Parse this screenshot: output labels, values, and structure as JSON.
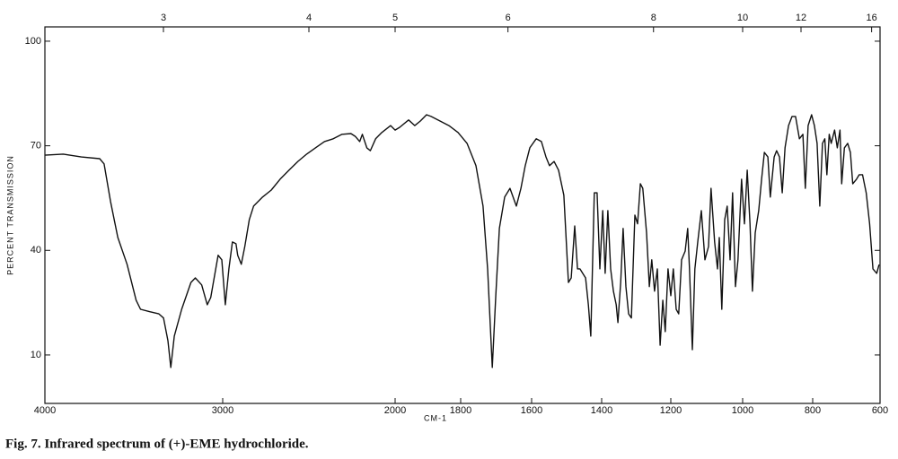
{
  "chart_data": {
    "type": "line",
    "caption": "Fig. 7. Infrared spectrum of (+)-EME hydrochloride.",
    "xlabel": "CM-1",
    "ylabel": "PERCENT TRANSMISSION",
    "xlim": [
      4000,
      600
    ],
    "ylim": [
      -3.9,
      104.1
    ],
    "xticks": [
      4000,
      3000,
      2000,
      1800,
      1600,
      1400,
      1200,
      1000,
      800,
      600
    ],
    "x2ticks": [
      3,
      4,
      5,
      6,
      8,
      10,
      12,
      16
    ],
    "yticks": [
      10,
      40,
      70,
      100
    ],
    "color": "#111111",
    "x": [
      4000,
      3897,
      3795,
      3692,
      3667,
      3631,
      3590,
      3538,
      3487,
      3462,
      3410,
      3359,
      3333,
      3308,
      3292,
      3272,
      3231,
      3179,
      3154,
      3118,
      3087,
      3067,
      3026,
      3005,
      2985,
      2964,
      2944,
      2923,
      2913,
      2892,
      2872,
      2846,
      2821,
      2769,
      2718,
      2667,
      2615,
      2564,
      2513,
      2462,
      2410,
      2359,
      2308,
      2256,
      2231,
      2205,
      2190,
      2164,
      2144,
      2113,
      2077,
      2026,
      2000,
      1986,
      1959,
      1940,
      1923,
      1904,
      1890,
      1863,
      1836,
      1808,
      1782,
      1757,
      1737,
      1724,
      1711,
      1701,
      1691,
      1676,
      1661,
      1643,
      1630,
      1618,
      1605,
      1587,
      1572,
      1559,
      1549,
      1536,
      1523,
      1508,
      1495,
      1487,
      1477,
      1469,
      1462,
      1454,
      1446,
      1438,
      1431,
      1421,
      1413,
      1405,
      1397,
      1390,
      1382,
      1374,
      1366,
      1358,
      1353,
      1345,
      1338,
      1330,
      1322,
      1314,
      1304,
      1296,
      1288,
      1281,
      1270,
      1262,
      1255,
      1247,
      1239,
      1231,
      1223,
      1216,
      1208,
      1200,
      1193,
      1185,
      1178,
      1170,
      1160,
      1153,
      1148,
      1140,
      1133,
      1125,
      1115,
      1105,
      1095,
      1088,
      1078,
      1070,
      1065,
      1058,
      1050,
      1043,
      1035,
      1028,
      1020,
      1013,
      1003,
      995,
      987,
      979,
      972,
      964,
      954,
      946,
      938,
      928,
      921,
      910,
      903,
      895,
      887,
      879,
      869,
      859,
      849,
      838,
      828,
      821,
      813,
      803,
      795,
      787,
      779,
      771,
      764,
      758,
      751,
      745,
      735,
      727,
      719,
      714,
      706,
      696,
      688,
      681,
      670,
      662,
      652,
      641,
      631,
      621,
      610,
      603
    ],
    "values": [
      67.3,
      67.6,
      66.8,
      66.3,
      64.8,
      54.0,
      43.7,
      36.0,
      25.7,
      23.1,
      22.4,
      21.8,
      20.6,
      14.1,
      6.4,
      15.4,
      23.1,
      30.8,
      32.1,
      30.1,
      24.4,
      26.5,
      38.6,
      37.3,
      24.4,
      34.7,
      42.4,
      41.9,
      38.6,
      36.0,
      41.1,
      48.8,
      52.7,
      55.3,
      57.3,
      60.4,
      63.0,
      65.5,
      67.6,
      69.4,
      71.2,
      72.0,
      73.3,
      73.5,
      72.7,
      71.2,
      73.3,
      69.4,
      68.6,
      72.0,
      73.8,
      75.8,
      74.5,
      75.3,
      77.4,
      75.8,
      77.1,
      78.9,
      78.4,
      77.1,
      75.8,
      73.8,
      70.7,
      64.3,
      52.7,
      34.7,
      6.4,
      27.0,
      46.3,
      55.3,
      57.8,
      52.7,
      57.8,
      64.3,
      69.4,
      72.0,
      71.2,
      66.8,
      64.3,
      65.5,
      63.0,
      55.8,
      30.8,
      32.1,
      47.0,
      34.7,
      34.7,
      33.4,
      32.1,
      24.4,
      15.4,
      56.5,
      56.5,
      34.7,
      51.4,
      33.4,
      51.4,
      34.7,
      28.3,
      24.4,
      19.3,
      30.8,
      46.3,
      29.6,
      21.8,
      20.6,
      50.1,
      47.6,
      59.1,
      57.8,
      45.0,
      29.6,
      37.3,
      28.3,
      34.7,
      12.8,
      25.7,
      16.7,
      34.7,
      27.0,
      34.7,
      23.1,
      21.8,
      37.3,
      39.8,
      46.3,
      34.7,
      11.5,
      34.7,
      42.4,
      51.4,
      37.3,
      41.1,
      57.8,
      42.4,
      34.7,
      43.7,
      23.1,
      48.8,
      52.7,
      37.3,
      56.5,
      29.6,
      37.3,
      60.4,
      47.6,
      63.0,
      47.6,
      28.3,
      45.0,
      51.4,
      60.4,
      68.1,
      66.8,
      55.3,
      66.8,
      68.6,
      66.8,
      56.5,
      69.4,
      75.8,
      78.4,
      78.4,
      72.0,
      73.3,
      57.8,
      75.8,
      78.9,
      75.8,
      70.7,
      52.7,
      70.7,
      72.0,
      61.7,
      73.3,
      70.7,
      74.5,
      69.4,
      74.5,
      59.1,
      69.4,
      70.7,
      68.1,
      59.1,
      60.4,
      61.7,
      61.7,
      56.5,
      47.6,
      34.7,
      33.4,
      35.9
    ]
  }
}
